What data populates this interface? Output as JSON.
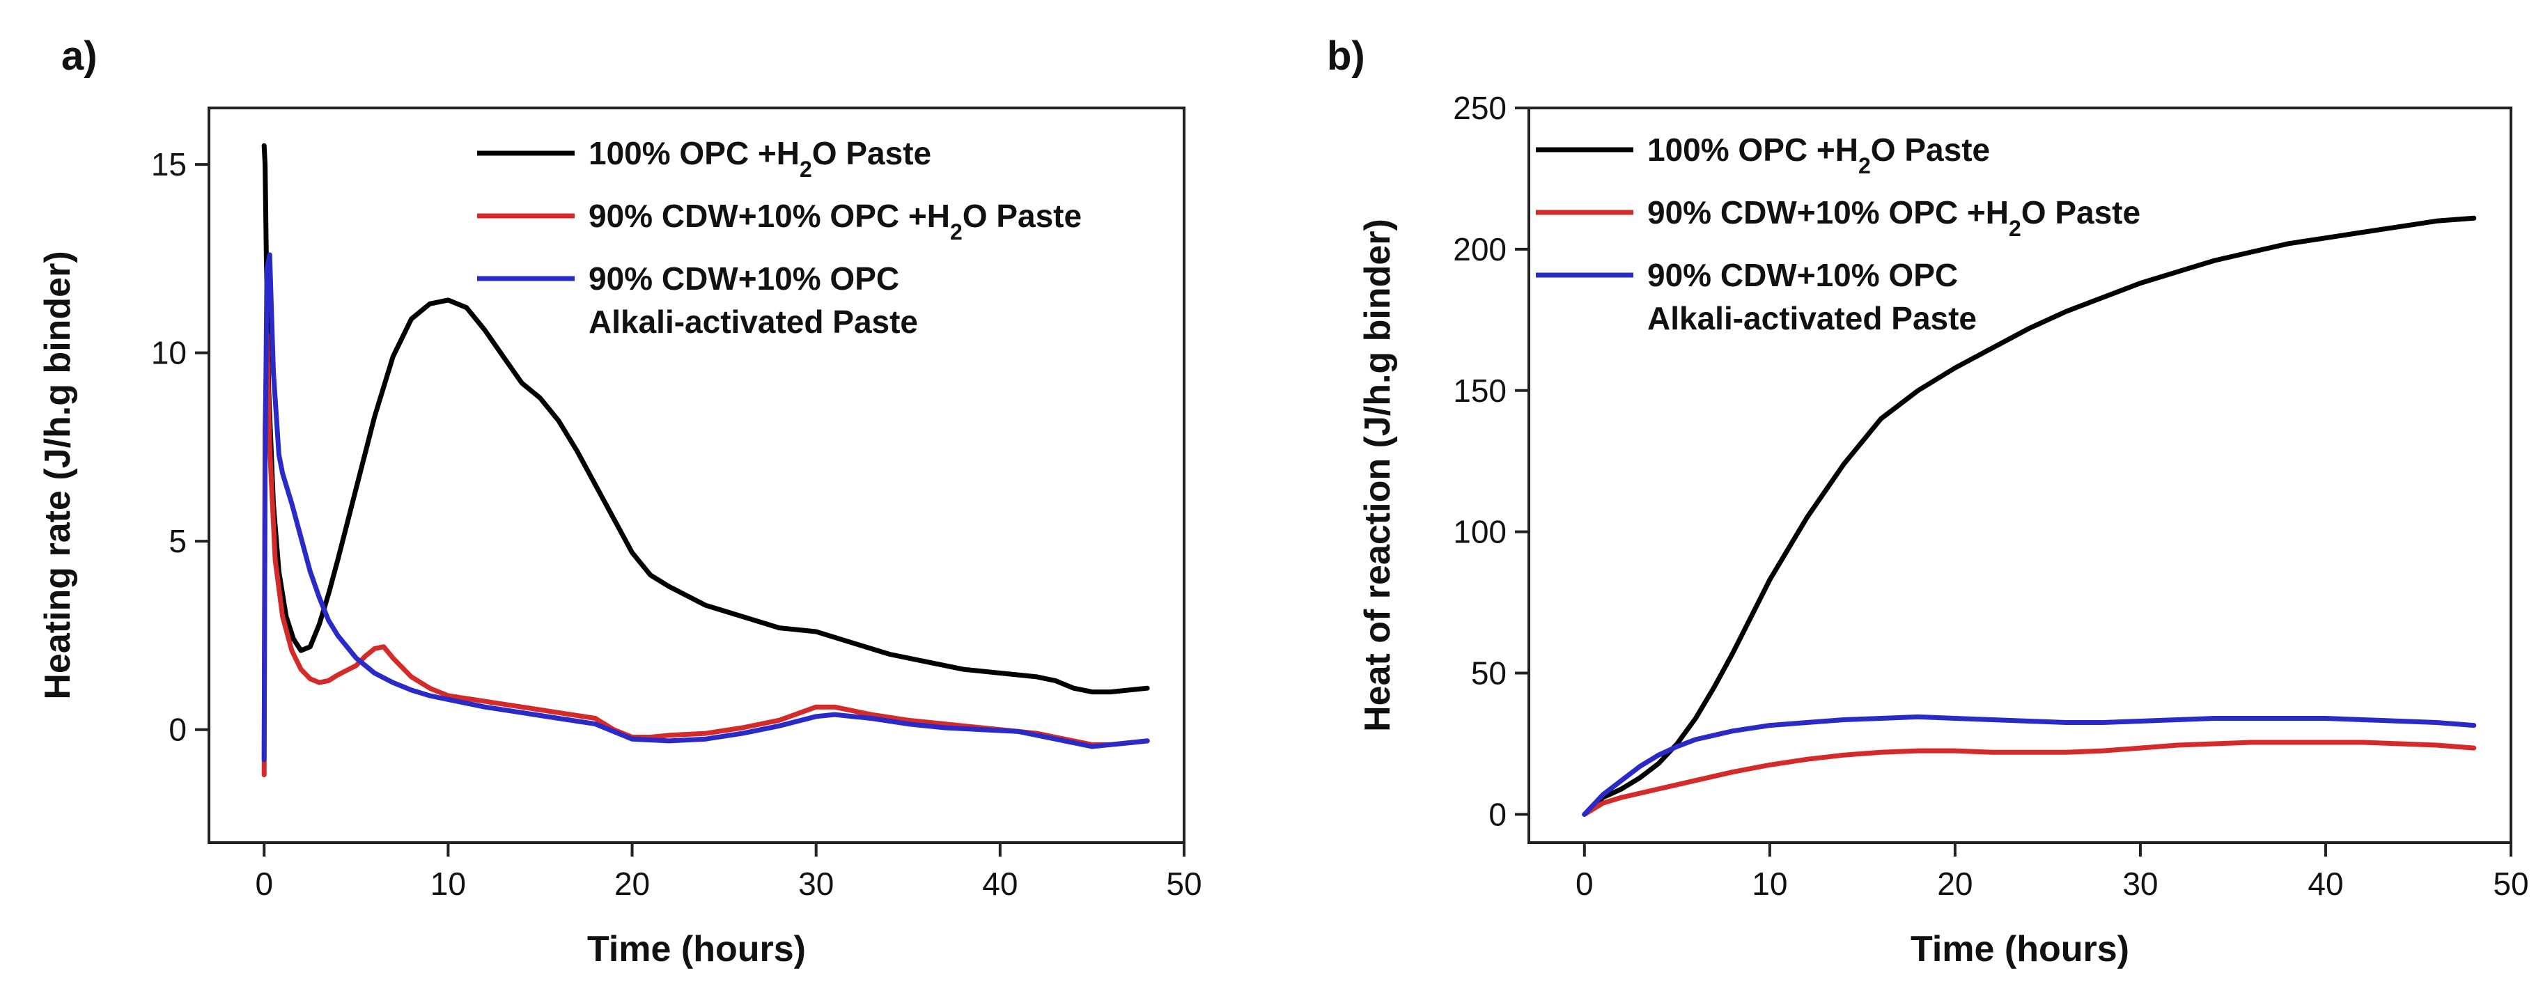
{
  "figure": {
    "panels": [
      "a)",
      "b)"
    ]
  },
  "chart_data": [
    {
      "type": "line",
      "panel": "a)",
      "title": "",
      "xlabel": "Time (hours)",
      "ylabel": "Heating rate (J/h.g binder)",
      "xlim": [
        -3,
        50
      ],
      "ylim": [
        -3,
        16.5
      ],
      "xticks": [
        0,
        10,
        20,
        30,
        40,
        50
      ],
      "yticks": [
        0,
        5,
        10,
        15
      ],
      "grid": false,
      "legend": "top-right",
      "legend_entries": [
        {
          "parts": [
            "100% OPC +H",
            "2",
            "O Paste"
          ]
        },
        {
          "parts": [
            "90% CDW+10% OPC +H",
            "2",
            "O Paste"
          ]
        },
        {
          "parts": [
            "90% CDW+10% OPC"
          ],
          "line2": "Alkali-activated Paste"
        }
      ],
      "series": [
        {
          "name": "100% OPC +H2O Paste",
          "color": "#000000",
          "x": [
            0,
            0.05,
            0.12,
            0.25,
            0.5,
            0.8,
            1.2,
            1.6,
            2.0,
            2.5,
            3.0,
            3.5,
            4.0,
            5.0,
            6.0,
            7.0,
            8.0,
            9.0,
            10.0,
            11.0,
            12.0,
            13.0,
            14.0,
            15.0,
            16.0,
            17.0,
            18.0,
            19.0,
            20.0,
            21.0,
            22.0,
            24.0,
            26.0,
            28.0,
            30.0,
            32.0,
            34.0,
            36.0,
            38.0,
            40.0,
            42.0,
            43.0,
            44.0,
            45.0,
            46.0,
            47.0,
            48.0
          ],
          "y": [
            15.5,
            15.0,
            12.5,
            9.0,
            6.0,
            4.2,
            3.0,
            2.4,
            2.1,
            2.2,
            2.8,
            3.6,
            4.5,
            6.4,
            8.3,
            9.9,
            10.9,
            11.3,
            11.4,
            11.2,
            10.6,
            9.9,
            9.2,
            8.8,
            8.2,
            7.4,
            6.5,
            5.6,
            4.7,
            4.1,
            3.8,
            3.3,
            3.0,
            2.7,
            2.6,
            2.3,
            2.0,
            1.8,
            1.6,
            1.5,
            1.4,
            1.3,
            1.1,
            1.0,
            1.0,
            1.05,
            1.1
          ]
        },
        {
          "name": "90% CDW+10% OPC +H2O Paste",
          "color": "#d42a2a",
          "x": [
            0,
            0.05,
            0.15,
            0.3,
            0.6,
            1.0,
            1.5,
            2.0,
            2.5,
            3.0,
            3.5,
            4.0,
            5.0,
            5.5,
            6.0,
            6.5,
            7.0,
            8.0,
            9.0,
            10.0,
            12.0,
            14.0,
            16.0,
            18.0,
            19.0,
            20.0,
            21.0,
            22.0,
            24.0,
            26.0,
            28.0,
            30.0,
            31.0,
            33.0,
            35.0,
            37.0,
            39.0,
            41.0,
            42.0,
            43.0,
            44.0,
            45.0,
            46.0,
            47.0,
            48.0
          ],
          "y": [
            -1.2,
            8.0,
            10.5,
            7.5,
            4.5,
            3.0,
            2.1,
            1.6,
            1.35,
            1.25,
            1.3,
            1.45,
            1.7,
            1.95,
            2.15,
            2.2,
            1.9,
            1.4,
            1.1,
            0.9,
            0.75,
            0.6,
            0.45,
            0.3,
            0.0,
            -0.2,
            -0.2,
            -0.15,
            -0.1,
            0.05,
            0.25,
            0.6,
            0.6,
            0.4,
            0.25,
            0.15,
            0.05,
            -0.05,
            -0.1,
            -0.2,
            -0.3,
            -0.4,
            -0.4,
            -0.35,
            -0.3
          ]
        },
        {
          "name": "90% CDW+10% OPC Alkali-activated Paste",
          "color": "#2a2ac8",
          "x": [
            0,
            0.05,
            0.15,
            0.3,
            0.5,
            0.8,
            1.0,
            1.5,
            2.0,
            2.5,
            3.0,
            3.5,
            4.0,
            5.0,
            6.0,
            7.0,
            8.0,
            9.0,
            10.0,
            12.0,
            14.0,
            16.0,
            18.0,
            20.0,
            22.0,
            24.0,
            26.0,
            28.0,
            30.0,
            31.0,
            33.0,
            35.0,
            37.0,
            39.0,
            41.0,
            42.0,
            43.0,
            44.0,
            45.0,
            46.0,
            47.0,
            48.0
          ],
          "y": [
            -0.8,
            7.0,
            12.2,
            12.6,
            9.5,
            7.3,
            6.8,
            6.0,
            5.1,
            4.2,
            3.5,
            2.9,
            2.5,
            1.9,
            1.5,
            1.25,
            1.05,
            0.9,
            0.8,
            0.6,
            0.45,
            0.3,
            0.15,
            -0.25,
            -0.3,
            -0.25,
            -0.1,
            0.1,
            0.35,
            0.4,
            0.3,
            0.15,
            0.05,
            0.0,
            -0.05,
            -0.15,
            -0.25,
            -0.35,
            -0.45,
            -0.4,
            -0.35,
            -0.3
          ]
        }
      ]
    },
    {
      "type": "line",
      "panel": "b)",
      "title": "",
      "xlabel": "Time (hours)",
      "ylabel": "Heat of reaction (J/h.g binder)",
      "xlim": [
        -3,
        50
      ],
      "ylim": [
        -10,
        250
      ],
      "xticks": [
        0,
        10,
        20,
        30,
        40,
        50
      ],
      "yticks": [
        0,
        50,
        100,
        150,
        200,
        250
      ],
      "grid": false,
      "legend": "top-left",
      "legend_entries": [
        {
          "parts": [
            "100% OPC +H",
            "2",
            "O Paste"
          ]
        },
        {
          "parts": [
            "90% CDW+10% OPC +H",
            "2",
            "O Paste"
          ]
        },
        {
          "parts": [
            "90% CDW+10% OPC"
          ],
          "line2": "Alkali-activated Paste"
        }
      ],
      "series": [
        {
          "name": "100% OPC +H2O Paste",
          "color": "#000000",
          "x": [
            0,
            1,
            2,
            3,
            4,
            5,
            6,
            7,
            8,
            9,
            10,
            12,
            14,
            16,
            18,
            20,
            22,
            24,
            26,
            28,
            30,
            32,
            34,
            36,
            38,
            40,
            42,
            44,
            46,
            48
          ],
          "y": [
            0,
            6,
            9,
            13,
            18,
            25,
            34,
            45,
            57,
            70,
            83,
            105,
            124,
            140,
            150,
            158,
            165,
            172,
            178,
            183,
            188,
            192,
            196,
            199,
            202,
            204,
            206,
            208,
            210,
            211
          ]
        },
        {
          "name": "90% CDW+10% OPC +H2O Paste",
          "color": "#d42a2a",
          "x": [
            0,
            1,
            2,
            4,
            6,
            8,
            10,
            12,
            14,
            16,
            18,
            20,
            22,
            24,
            26,
            28,
            30,
            32,
            34,
            36,
            38,
            40,
            42,
            44,
            46,
            48
          ],
          "y": [
            0,
            4,
            6,
            9,
            12,
            15,
            17.5,
            19.5,
            21,
            22,
            22.5,
            22.5,
            22,
            22,
            22,
            22.5,
            23.5,
            24.5,
            25,
            25.5,
            25.5,
            25.5,
            25.5,
            25,
            24.5,
            23.5
          ]
        },
        {
          "name": "90% CDW+10% OPC Alkali-activated Paste",
          "color": "#2a2ac8",
          "x": [
            0,
            1,
            2,
            3,
            4,
            5,
            6,
            7,
            8,
            10,
            12,
            14,
            16,
            18,
            20,
            22,
            24,
            26,
            28,
            30,
            32,
            34,
            36,
            38,
            40,
            42,
            44,
            46,
            48
          ],
          "y": [
            0,
            7,
            12,
            17,
            21,
            24,
            26.5,
            28,
            29.5,
            31.5,
            32.5,
            33.5,
            34,
            34.5,
            34,
            33.5,
            33,
            32.5,
            32.5,
            33,
            33.5,
            34,
            34,
            34,
            34,
            33.5,
            33,
            32.5,
            31.5
          ]
        }
      ]
    }
  ]
}
